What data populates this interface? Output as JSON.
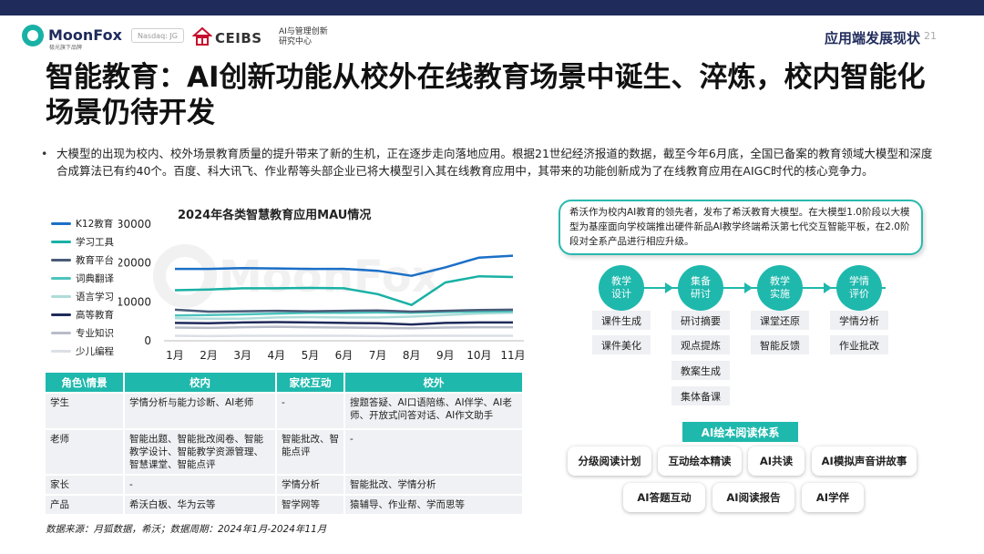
{
  "header": {
    "logo_text": "MoonFox",
    "logo_sub": "极光旗下品牌",
    "nasdaq": "Nasdaq: JG",
    "ceibs": "CEIBS",
    "ceibs_sub_1": "AI与管理创新",
    "ceibs_sub_2": "研究中心",
    "section_title": "应用端发展现状",
    "page_number": "21"
  },
  "main_title": "智能教育：AI创新功能从校外在线教育场景中诞生、淬炼，校内智能化场景仍待开发",
  "bullet": "大模型的出现为校内、校外场景教育质量的提升带来了新的生机，正在逐步走向落地应用。根据21世纪经济报道的数据，截至今年6月底，全国已备案的教育领域大模型和深度合成算法已有约40个。百度、科大讯飞、作业帮等头部企业已将大模型引入其在线教育应用中，其带来的功能创新成为了在线教育应用在AIGC时代的核心竞争力。",
  "watermark": "MoonFox",
  "chart_data": {
    "type": "line",
    "title": "2024年各类智慧教育应用MAU情况",
    "categories": [
      "1月",
      "2月",
      "3月",
      "4月",
      "5月",
      "6月",
      "7月",
      "8月",
      "9月",
      "10月",
      "11月"
    ],
    "ylim": [
      0,
      30000
    ],
    "yticks": [
      0,
      10000,
      20000,
      30000
    ],
    "series": [
      {
        "name": "K12教育",
        "color": "#1b6fc7",
        "values": [
          18500,
          18500,
          18700,
          18600,
          18500,
          18500,
          18000,
          16700,
          18900,
          21400,
          21900
        ]
      },
      {
        "name": "学习工具",
        "color": "#19b1a5",
        "values": [
          13000,
          13200,
          13500,
          13500,
          13600,
          13500,
          12000,
          9200,
          15000,
          16600,
          16400
        ]
      },
      {
        "name": "教育平台",
        "color": "#4a5a78",
        "values": [
          8000,
          7500,
          7600,
          7700,
          7600,
          7700,
          7800,
          7500,
          7700,
          7900,
          8000
        ]
      },
      {
        "name": "词典翻译",
        "color": "#4cc4bd",
        "values": [
          6500,
          6600,
          6800,
          7000,
          7200,
          7200,
          7300,
          7200,
          7400,
          7500,
          7600
        ]
      },
      {
        "name": "语言学习",
        "color": "#aeddd9",
        "values": [
          5800,
          5700,
          5700,
          6000,
          6100,
          6000,
          6000,
          6200,
          6600,
          7000,
          7200
        ]
      },
      {
        "name": "高等教育",
        "color": "#1f2b5b",
        "values": [
          4600,
          4500,
          4700,
          4800,
          4700,
          4600,
          4500,
          4200,
          4600,
          4700,
          4700
        ]
      },
      {
        "name": "专业知识",
        "color": "#b8bcc8",
        "values": [
          3400,
          3300,
          3500,
          3600,
          3500,
          3400,
          3300,
          3200,
          3400,
          3500,
          3500
        ]
      },
      {
        "name": "少儿编程",
        "color": "#dcdfe6",
        "values": [
          1300,
          1200,
          1300,
          1300,
          1300,
          1300,
          1200,
          1300,
          1300,
          1300,
          1300
        ]
      }
    ]
  },
  "table": {
    "headers": [
      "角色\\情景",
      "校内",
      "家校互动",
      "校外"
    ],
    "rows": [
      [
        "学生",
        "学情分析与能力诊断、AI老师",
        "-",
        "搜题答疑、AI口语陪练、AI伴学、AI老师、开放式问答对话、AI作文助手"
      ],
      [
        "老师",
        "智能出题、智能批改阅卷、智能教学设计、智能教学资源管理、智慧课堂、智能点评",
        "智能批改、智能点评",
        "-"
      ],
      [
        "家长",
        "-",
        "学情分析",
        "智能批改、学情分析"
      ],
      [
        "产品",
        "希沃白板、华为云等",
        "智学网等",
        "猿辅导、作业帮、学而思等"
      ]
    ]
  },
  "source": "数据来源：月狐数据，希沃；数据周期：2024年1月-2024年11月",
  "seewo_note": "希沃作为校内AI教育的领先者，发布了希沃教育大模型。在大模型1.0阶段以大模型为基座面向学校端推出硬件新品AI教学终端希沃第七代交互智能平板，在2.0阶段对全系产品进行相应升级。",
  "flow": {
    "steps": [
      {
        "label_1": "教学",
        "label_2": "设计",
        "tags": [
          "课件生成",
          "课件美化"
        ]
      },
      {
        "label_1": "集备",
        "label_2": "研讨",
        "tags": [
          "研讨摘要",
          "观点提炼",
          "教案生成",
          "集体备课"
        ]
      },
      {
        "label_1": "教学",
        "label_2": "实施",
        "tags": [
          "课堂还原",
          "智能反馈"
        ]
      },
      {
        "label_1": "学情",
        "label_2": "评价",
        "tags": [
          "学情分析",
          "作业批改"
        ]
      }
    ]
  },
  "ai_reading": {
    "title": "AI绘本阅读体系",
    "row1": [
      "分级阅读计划",
      "互动绘本精读",
      "AI共读",
      "AI模拟声音讲故事"
    ],
    "row2": [
      "AI答题互动",
      "AI阅读报告",
      "AI学伴"
    ]
  }
}
